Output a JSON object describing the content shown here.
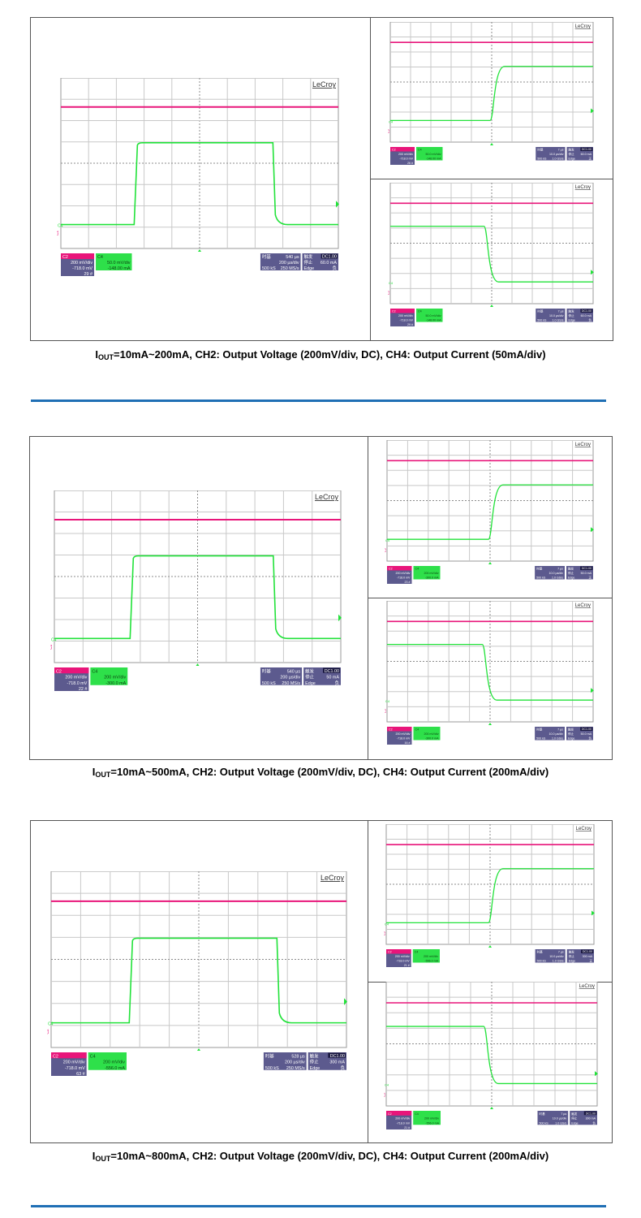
{
  "figures": [
    {
      "caption_i": "I",
      "caption_sub": "OUT",
      "caption_rest": "=10mA~200mA, CH2: Output Voltage (200mV/div, DC), CH4: Output Current (50mA/div)",
      "main": {
        "brand": "LeCroy",
        "ch2": {
          "title": "C2",
          "v1": "200 mV/div",
          "v2": "-718.0 mV",
          "v3": "29 #"
        },
        "ch4": {
          "title": "C4",
          "v1": "50.0 mV/div",
          "v2": "-148.00 mA"
        },
        "time": {
          "k": "时基",
          "v1": "540 µs",
          "v2": "200 µs/div",
          "v3": "500 kS",
          "v4": "250 MS/s"
        },
        "trig": {
          "k": "触发",
          "badge": "DC1.00",
          "v1": "停止",
          "v2": "60.0 mA",
          "v3": "Edge",
          "v4": "负"
        }
      },
      "top": {
        "brand": "LeCroy",
        "ch2": {
          "title": "C2",
          "v1": "200 mV/div",
          "v2": "-718.0 mV",
          "v3": "26 #"
        },
        "ch4": {
          "title": "C4",
          "v1": "50.0 mV/div",
          "v2": "-148.00 mA"
        },
        "time": {
          "k": "时基",
          "v1": "7 µs",
          "v2": "10.0 µs/div",
          "v3": "500 kS",
          "v4": "1.0 GS/s"
        },
        "trig": {
          "k": "触发",
          "badge": "DC1.00",
          "v1": "停止",
          "v2": "60.0 mA",
          "v3": "Edge",
          "v4": "正"
        }
      },
      "bottom": {
        "brand": "LeCroy",
        "ch2": {
          "title": "C2",
          "v1": "200 mV/div",
          "v2": "-718.0 mV",
          "v3": "29 #"
        },
        "ch4": {
          "title": "C4",
          "v1": "50.0 mV/div",
          "v2": "-148.00 mA"
        },
        "time": {
          "k": "时基",
          "v1": "7 µs",
          "v2": "10.0 µs/div",
          "v3": "500 kS",
          "v4": "1.0 GS/s"
        },
        "trig": {
          "k": "触发",
          "badge": "DC1.00",
          "v1": "停止",
          "v2": "60.0 mA",
          "v3": "Edge",
          "v4": "负"
        }
      }
    },
    {
      "caption_i": "I",
      "caption_sub": "OUT",
      "caption_rest": "=10mA~500mA, CH2: Output Voltage (200mV/div, DC), CH4: Output Current (200mA/div)",
      "main": {
        "brand": "LeCroy",
        "ch2": {
          "title": "C2",
          "v1": "200 mV/div",
          "v2": "-718.0 mV",
          "v3": "22 #"
        },
        "ch4": {
          "title": "C4",
          "v1": "200 mV/div",
          "v2": "-300.0 mA"
        },
        "time": {
          "k": "时基",
          "v1": "540 µs",
          "v2": "200 µs/div",
          "v3": "500 kS",
          "v4": "250 MS/s"
        },
        "trig": {
          "k": "触发",
          "badge": "DC1.00",
          "v1": "停止",
          "v2": "50 mA",
          "v3": "Edge",
          "v4": "负"
        }
      },
      "top": {
        "brand": "LeCroy",
        "ch2": {
          "title": "C2",
          "v1": "200 mV/div",
          "v2": "-718.0 mV",
          "v3": "23 #"
        },
        "ch4": {
          "title": "C4",
          "v1": "200 mV/div",
          "v2": "-300.0 mA"
        },
        "time": {
          "k": "时基",
          "v1": "7 µs",
          "v2": "10.0 µs/div",
          "v3": "500 kS",
          "v4": "1.0 GS/s"
        },
        "trig": {
          "k": "触发",
          "badge": "DC1.00",
          "v1": "停止",
          "v2": "50.0 mA",
          "v3": "Edge",
          "v4": "正"
        }
      },
      "bottom": {
        "brand": "LeCroy",
        "ch2": {
          "title": "C2",
          "v1": "200 mV/div",
          "v2": "-718.0 mV",
          "v3": "16 #"
        },
        "ch4": {
          "title": "C4",
          "v1": "200 mV/div",
          "v2": "-300.0 mA"
        },
        "time": {
          "k": "时基",
          "v1": "7 µs",
          "v2": "10.0 µs/div",
          "v3": "500 kS",
          "v4": "1.0 GS/s"
        },
        "trig": {
          "k": "触发",
          "badge": "DC1.00",
          "v1": "停止",
          "v2": "50.0 mA",
          "v3": "Edge",
          "v4": "负"
        }
      }
    },
    {
      "caption_i": "I",
      "caption_sub": "OUT",
      "caption_rest": "=10mA~800mA, CH2: Output Voltage (200mV/div, DC), CH4: Output Current (200mA/div)",
      "main": {
        "brand": "LeCroy",
        "ch2": {
          "title": "C2",
          "v1": "200 mV/div",
          "v2": "-718.0 mV",
          "v3": "63 #"
        },
        "ch4": {
          "title": "C4",
          "v1": "200 mV/div",
          "v2": "-556.0 mA"
        },
        "time": {
          "k": "时基",
          "v1": "528 µs",
          "v2": "200 µs/div",
          "v3": "500 kS",
          "v4": "250 MS/s"
        },
        "trig": {
          "k": "触发",
          "badge": "DC1.00",
          "v1": "停止",
          "v2": "300 mA",
          "v3": "Edge",
          "v4": "负"
        }
      },
      "top": {
        "brand": "LeCroy",
        "ch2": {
          "title": "C2",
          "v1": "200 mV/div",
          "v2": "-718.0 mV",
          "v3": "21 #"
        },
        "ch4": {
          "title": "C4",
          "v1": "200 mV/div",
          "v2": "-556.0 mA"
        },
        "time": {
          "k": "时基",
          "v1": "7 µs",
          "v2": "10.0 µs/div",
          "v3": "500 kS",
          "v4": "1.0 GS/s"
        },
        "trig": {
          "k": "触发",
          "badge": "DC1.00",
          "v1": "停止",
          "v2": "300 mA",
          "v3": "Edge",
          "v4": "正"
        }
      },
      "bottom": {
        "brand": "LeCroy",
        "ch2": {
          "title": "C2",
          "v1": "200 mV/div",
          "v2": "-718.0 mV",
          "v3": "21 #"
        },
        "ch4": {
          "title": "C4",
          "v1": "200 mV/div",
          "v2": "-556.0 mA"
        },
        "time": {
          "k": "时基",
          "v1": "7 µs",
          "v2": "10.0 µs/div",
          "v3": "500 kS",
          "v4": "1.0 GS/s"
        },
        "trig": {
          "k": "触发",
          "badge": "DC1.00",
          "v1": "停止",
          "v2": "300 mA",
          "v3": "Edge",
          "v4": "负"
        }
      }
    }
  ],
  "colors": {
    "ch2_trace": "#e8157a",
    "ch4_trace": "#22e23a",
    "grid": "#c8c8c8",
    "center_dash": "#8c8c8c",
    "panel_purple": "#5c5a8e",
    "panel_green": "#2ee04a",
    "rule": "#1f6fb5"
  },
  "scope_channel_markers": {
    "c2": "C2",
    "c4": "C4"
  }
}
